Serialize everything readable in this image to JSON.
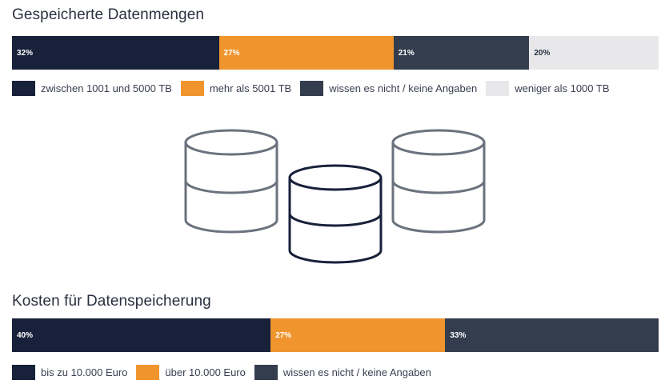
{
  "charts": [
    {
      "title": "Gespeicherte Datenmengen",
      "chart_data": {
        "type": "bar",
        "orientation": "horizontal-stacked-100",
        "title": "Gespeicherte Datenmengen",
        "categories": [
          "zwischen 1001 und 5000 TB",
          "mehr als 5001 TB",
          "wissen es nicht / keine Angaben",
          "weniger als 1000 TB"
        ],
        "values": [
          32,
          27,
          21,
          20
        ],
        "labels": [
          "32%",
          "27%",
          "21%",
          "20%"
        ],
        "colors": [
          "#18213a",
          "#f0952e",
          "#343d4e",
          "#e8e8ea"
        ],
        "text_colors": [
          "#ffffff",
          "#ffffff",
          "#ffffff",
          "#2b3140"
        ],
        "unit": "%",
        "legend_position": "bottom"
      }
    },
    {
      "title": "Kosten für Datenspeicherung",
      "chart_data": {
        "type": "bar",
        "orientation": "horizontal-stacked-100",
        "title": "Kosten für Datenspeicherung",
        "categories": [
          "bis zu 10.000 Euro",
          "über 10.000 Euro",
          "wissen es nicht / keine Angaben"
        ],
        "values": [
          40,
          27,
          33
        ],
        "labels": [
          "40%",
          "27%",
          "33%"
        ],
        "colors": [
          "#18213a",
          "#f0952e",
          "#343d4e"
        ],
        "text_colors": [
          "#ffffff",
          "#ffffff",
          "#ffffff"
        ],
        "unit": "%",
        "legend_position": "bottom"
      }
    }
  ],
  "illustration": {
    "icons": [
      "database-icon",
      "database-icon",
      "database-icon"
    ],
    "colors": {
      "outer": "#6b727e",
      "center": "#18213a"
    }
  }
}
